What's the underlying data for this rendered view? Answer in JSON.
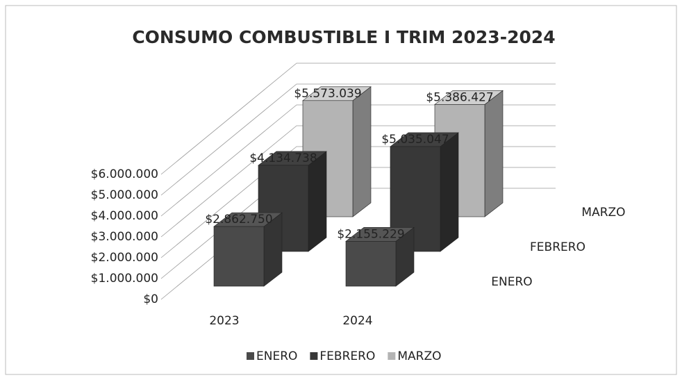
{
  "chart_data": {
    "type": "bar3d",
    "title": "CONSUMO COMBUSTIBLE I TRIM 2023-2024",
    "categories": [
      "2023",
      "2024"
    ],
    "series": [
      {
        "name": "ENERO",
        "color": "#4a4a4a",
        "values": [
          2862750,
          2155229
        ],
        "value_labels": [
          "$2.862.750",
          "$2.155.229"
        ]
      },
      {
        "name": "FEBRERO",
        "color": "#383838",
        "values": [
          4134738,
          5035047
        ],
        "value_labels": [
          "$4.134.738",
          "$5.035.047"
        ]
      },
      {
        "name": "MARZO",
        "color": "#b4b4b4",
        "values": [
          5573039,
          5386427
        ],
        "value_labels": [
          "$5.573.039",
          "$5.386.427"
        ]
      }
    ],
    "ylim": [
      0,
      6000000
    ],
    "yticks": [
      {
        "value": 0,
        "label": "$0"
      },
      {
        "value": 1000000,
        "label": "$1.000.000"
      },
      {
        "value": 2000000,
        "label": "$2.000.000"
      },
      {
        "value": 3000000,
        "label": "$3.000.000"
      },
      {
        "value": 4000000,
        "label": "$4.000.000"
      },
      {
        "value": 5000000,
        "label": "$5.000.000"
      },
      {
        "value": 6000000,
        "label": "$6.000.000"
      }
    ],
    "grid": true,
    "legend": "bottom"
  }
}
